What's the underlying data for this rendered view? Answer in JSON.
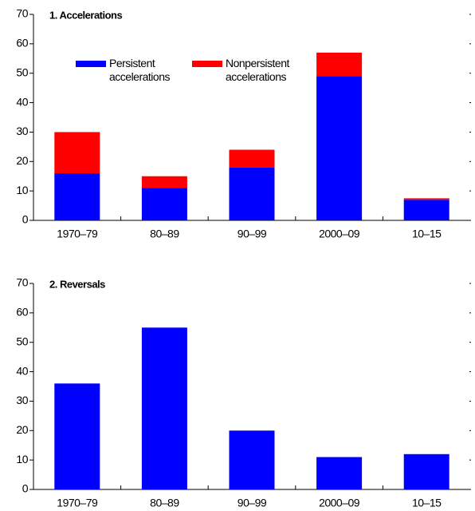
{
  "chart_data": [
    {
      "type": "bar",
      "stacked": true,
      "title": "1. Accelerations",
      "categories": [
        "1970–79",
        "80–89",
        "90–99",
        "2000–09",
        "10–15"
      ],
      "series": [
        {
          "name": "Persistent accelerations",
          "color": "#0000ff",
          "values": [
            16,
            11,
            18,
            49,
            7
          ]
        },
        {
          "name": "Nonpersistent accelerations",
          "color": "#ff0000",
          "values": [
            14,
            4,
            6,
            8,
            0.5
          ]
        }
      ],
      "ylim": [
        0,
        70
      ],
      "yticks": [
        0,
        10,
        20,
        30,
        40,
        50,
        60,
        70
      ],
      "legend": "upper left"
    },
    {
      "type": "bar",
      "stacked": true,
      "title": "2. Reversals",
      "categories": [
        "1970–79",
        "80–89",
        "90–99",
        "2000–09",
        "10–15"
      ],
      "series": [
        {
          "color": "#0000ff",
          "values": [
            36,
            55,
            20,
            11,
            12
          ]
        }
      ],
      "ylim": [
        0,
        70
      ],
      "yticks": [
        0,
        10,
        20,
        30,
        40,
        50,
        60,
        70
      ]
    }
  ]
}
